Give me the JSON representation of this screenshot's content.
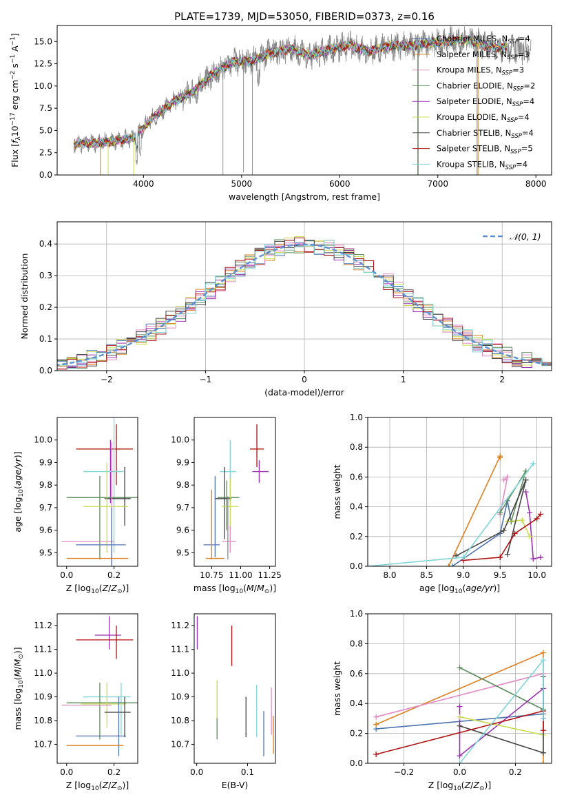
{
  "title": "PLATE=1739, MJD=53050, FIBERID=0373, z=0.16",
  "palette": [
    "#4c72b0",
    "#dd7f20",
    "#e289c4",
    "#5a8a5a",
    "#9b2fb0",
    "#c8dc4a",
    "#444444",
    "#b01010",
    "#7fd4d8",
    "#888888"
  ],
  "chart_data": [
    {
      "id": "spectrum",
      "type": "line",
      "xlabel": "wavelength [Angstrom, rest frame]",
      "ylabel": "Flux [f_λ 10^-17 erg cm^-2 s^-1 A^-1]",
      "xlim": [
        3120,
        8160
      ],
      "ylim": [
        0,
        16.8
      ],
      "xticks": [
        4000,
        5000,
        6000,
        7000,
        8000
      ],
      "yticks": [
        0.0,
        2.5,
        5.0,
        7.5,
        10.0,
        12.5,
        15.0
      ],
      "grid": false,
      "legend_position": "upper-right",
      "legend": [
        {
          "label": "Chabrier MILES, N",
          "sub": "SSP",
          "tail": "=4",
          "color": "#4c72b0"
        },
        {
          "label": "Salpeter MILES, N",
          "sub": "SSP",
          "tail": "=3",
          "color": "#dd7f20"
        },
        {
          "label": "Kroupa MILES, N",
          "sub": "SSP",
          "tail": "=3",
          "color": "#e289c4"
        },
        {
          "label": "Chabrier ELODIE, N",
          "sub": "SSP",
          "tail": "=2",
          "color": "#5a8a5a"
        },
        {
          "label": "Salpeter ELODIE, N",
          "sub": "SSP",
          "tail": "=4",
          "color": "#9b2fb0"
        },
        {
          "label": "Kroupa ELODIE, N",
          "sub": "SSP",
          "tail": "=4",
          "color": "#c8dc4a"
        },
        {
          "label": "Chabrier STELIB, N",
          "sub": "SSP",
          "tail": "=4",
          "color": "#444444"
        },
        {
          "label": "Salpeter STELIB, N",
          "sub": "SSP",
          "tail": "=5",
          "color": "#b01010"
        },
        {
          "label": "Kroupa STELIB, N",
          "sub": "SSP",
          "tail": "=4",
          "color": "#7fd4d8"
        }
      ],
      "continuum": {
        "x": [
          3290,
          3500,
          3700,
          3900,
          4100,
          4300,
          4500,
          4700,
          4900,
          5100,
          5300,
          5500,
          5700,
          5900,
          6100,
          6300,
          6500,
          6700,
          6900,
          7100,
          7300,
          7500,
          7700,
          7900
        ],
        "y": [
          3.5,
          3.6,
          3.8,
          4.2,
          6.5,
          8.2,
          9.3,
          11.3,
          12.7,
          12.8,
          13.7,
          14.2,
          13.4,
          14.1,
          14.6,
          13.9,
          14.5,
          14.5,
          14.8,
          15.0,
          15.2,
          14.5,
          14.2,
          13.9
        ]
      },
      "observed_spikes": [
        {
          "x": 4810,
          "y": 0.0
        },
        {
          "x": 5020,
          "y": 0.3
        },
        {
          "x": 5110,
          "y": 0.0
        },
        {
          "x": 6795,
          "y": 0.0
        },
        {
          "x": 7400,
          "y": 0.0
        }
      ]
    },
    {
      "id": "residuals",
      "type": "histogram",
      "xlabel": "(data-model)/error",
      "ylabel": "Normed distribution",
      "xlim": [
        -2.5,
        2.5
      ],
      "ylim": [
        0,
        0.47
      ],
      "xticks": [
        -2,
        -1,
        0,
        1,
        2
      ],
      "yticks": [
        0.0,
        0.1,
        0.2,
        0.3,
        0.4
      ],
      "grid": true,
      "bin_width": 0.1,
      "legend_position": "upper-right",
      "reference_label": "𝒩(0, 1)",
      "reference_color": "#5b8fd4"
    },
    {
      "id": "age-vs-Z",
      "type": "errorbar",
      "xlabel": "Z [log10(Z/Z⊙)]",
      "ylabel": "age [log10(age/yr)]",
      "xlim": [
        -0.04,
        0.3
      ],
      "ylim": [
        9.44,
        10.1
      ],
      "xticks": [
        0.0,
        0.2
      ],
      "yticks": [
        9.5,
        9.6,
        9.7,
        9.8,
        9.9,
        10.0
      ],
      "grid": false,
      "points": [
        {
          "x": 0.18,
          "xerr": 0.06,
          "y": 9.96,
          "yerr": 0.0,
          "color": "#b01010",
          "xlo": 0.04,
          "xhi": 0.28,
          "ylo": 9.96,
          "yhi": 9.96
        },
        {
          "x": 0.21,
          "y": 9.96,
          "color": "#b01010",
          "xlo": 0.21,
          "xhi": 0.21,
          "ylo": 9.8,
          "yhi": 10.07
        },
        {
          "x": 0.185,
          "y": 9.86,
          "color": "#9b2fb0",
          "xlo": 0.185,
          "xhi": 0.185,
          "ylo": 9.72,
          "yhi": 10.0
        },
        {
          "x": 0.15,
          "y": 9.86,
          "color": "#7fd4d8",
          "xlo": 0.07,
          "xhi": 0.24,
          "ylo": 9.86,
          "yhi": 9.86
        },
        {
          "x": 0.2,
          "y": 9.86,
          "color": "#7fd4d8",
          "xlo": 0.2,
          "xhi": 0.2,
          "ylo": 9.5,
          "yhi": 10.1
        },
        {
          "x": 0.2,
          "y": 9.745,
          "color": "#5a8a5a",
          "xlo": 0.0,
          "xhi": 0.3,
          "ylo": 9.745,
          "yhi": 9.745
        },
        {
          "x": 0.14,
          "y": 9.745,
          "color": "#5a8a5a",
          "xlo": 0.14,
          "xhi": 0.14,
          "ylo": 9.47,
          "yhi": 9.84
        },
        {
          "x": 0.21,
          "y": 9.74,
          "color": "#444444",
          "xlo": 0.16,
          "xhi": 0.27,
          "ylo": 9.74,
          "yhi": 9.74
        },
        {
          "x": 0.245,
          "y": 9.74,
          "color": "#444444",
          "xlo": 0.245,
          "xhi": 0.245,
          "ylo": 9.62,
          "yhi": 9.88
        },
        {
          "x": 0.15,
          "y": 9.705,
          "color": "#c8dc4a",
          "xlo": 0.07,
          "xhi": 0.26,
          "ylo": 9.705,
          "yhi": 9.705
        },
        {
          "x": 0.17,
          "y": 9.705,
          "color": "#c8dc4a",
          "xlo": 0.17,
          "xhi": 0.17,
          "ylo": 9.5,
          "yhi": 9.9
        },
        {
          "x": 0.12,
          "y": 9.55,
          "color": "#e289c4",
          "xlo": -0.02,
          "xhi": 0.2,
          "ylo": 9.55,
          "yhi": 9.55
        },
        {
          "x": 0.19,
          "y": 9.55,
          "color": "#e289c4",
          "xlo": 0.19,
          "xhi": 0.19,
          "ylo": 9.45,
          "yhi": 9.99
        },
        {
          "x": 0.15,
          "y": 9.535,
          "color": "#4c72b0",
          "xlo": 0.04,
          "xhi": 0.25,
          "ylo": 9.535,
          "yhi": 9.535
        },
        {
          "x": 0.19,
          "y": 9.535,
          "color": "#4c72b0",
          "xlo": 0.19,
          "xhi": 0.19,
          "ylo": 9.44,
          "yhi": 9.7
        },
        {
          "x": 0.15,
          "y": 9.475,
          "color": "#dd7f20",
          "xlo": 0.0,
          "xhi": 0.26,
          "ylo": 9.475,
          "yhi": 9.475
        }
      ]
    },
    {
      "id": "age-vs-mass",
      "type": "errorbar",
      "xlabel": "mass [log10(M/M⊙)]",
      "ylabel": "",
      "xlim": [
        10.6,
        11.3
      ],
      "ylim": [
        9.44,
        10.1
      ],
      "xticks": [
        10.75,
        11.0,
        11.25
      ],
      "yticks": [
        9.5,
        9.6,
        9.7,
        9.8,
        9.9,
        10.0
      ],
      "grid": false,
      "points": [
        {
          "color": "#b01010",
          "xlo": 11.08,
          "xhi": 11.2,
          "ylo": 9.96,
          "yhi": 9.96
        },
        {
          "color": "#b01010",
          "xlo": 11.14,
          "xhi": 11.14,
          "ylo": 9.88,
          "yhi": 10.07
        },
        {
          "color": "#9b2fb0",
          "xlo": 11.1,
          "xhi": 11.24,
          "ylo": 9.86,
          "yhi": 9.86
        },
        {
          "color": "#9b2fb0",
          "xlo": 11.16,
          "xhi": 11.16,
          "ylo": 9.81,
          "yhi": 9.91
        },
        {
          "color": "#7fd4d8",
          "xlo": 10.82,
          "xhi": 10.96,
          "ylo": 9.86,
          "yhi": 9.86
        },
        {
          "color": "#7fd4d8",
          "xlo": 10.91,
          "xhi": 10.91,
          "ylo": 9.72,
          "yhi": 10.0
        },
        {
          "color": "#5a8a5a",
          "xlo": 10.8,
          "xhi": 10.99,
          "ylo": 9.745,
          "yhi": 9.745
        },
        {
          "color": "#5a8a5a",
          "xlo": 10.88,
          "xhi": 10.88,
          "ylo": 9.6,
          "yhi": 9.82
        },
        {
          "color": "#444444",
          "xlo": 10.78,
          "xhi": 10.92,
          "ylo": 9.74,
          "yhi": 9.74
        },
        {
          "color": "#444444",
          "xlo": 10.86,
          "xhi": 10.86,
          "ylo": 9.56,
          "yhi": 9.88
        },
        {
          "color": "#c8dc4a",
          "xlo": 10.84,
          "xhi": 10.98,
          "ylo": 9.705,
          "yhi": 9.705
        },
        {
          "color": "#c8dc4a",
          "xlo": 10.91,
          "xhi": 10.91,
          "ylo": 9.6,
          "yhi": 9.83
        },
        {
          "color": "#e289c4",
          "xlo": 10.84,
          "xhi": 10.96,
          "ylo": 9.55,
          "yhi": 9.55
        },
        {
          "color": "#e289c4",
          "xlo": 10.91,
          "xhi": 10.91,
          "ylo": 9.5,
          "yhi": 9.62
        },
        {
          "color": "#4c72b0",
          "xlo": 10.68,
          "xhi": 10.82,
          "ylo": 9.535,
          "yhi": 9.535
        },
        {
          "color": "#4c72b0",
          "xlo": 10.78,
          "xhi": 10.78,
          "ylo": 9.48,
          "yhi": 9.84
        },
        {
          "color": "#dd7f20",
          "xlo": 10.7,
          "xhi": 10.86,
          "ylo": 9.475,
          "yhi": 9.475
        },
        {
          "color": "#dd7f20",
          "xlo": 10.75,
          "xhi": 10.75,
          "ylo": 9.47,
          "yhi": 9.78
        },
        {
          "color": "#888888",
          "xlo": 10.89,
          "xhi": 10.89,
          "ylo": 9.47,
          "yhi": 9.75
        }
      ]
    },
    {
      "id": "weight-vs-age",
      "type": "line",
      "xlabel": "age [log10(age/yr)]",
      "ylabel": "mass weight",
      "xlim": [
        7.7,
        10.2
      ],
      "ylim": [
        0,
        1.0
      ],
      "xticks": [
        8.0,
        8.5,
        9.0,
        9.5,
        10.0
      ],
      "yticks": [
        0.0,
        0.2,
        0.4,
        0.6,
        0.8,
        1.0
      ],
      "grid": true,
      "series": [
        {
          "color": "#4c72b0",
          "x": [
            8.85,
            9.5,
            9.6,
            9.65
          ],
          "y": [
            0.0,
            0.22,
            0.44,
            0.3
          ]
        },
        {
          "color": "#dd7f20",
          "x": [
            8.8,
            9.5,
            9.5
          ],
          "y": [
            0.0,
            0.74,
            0.73
          ]
        },
        {
          "color": "#e289c4",
          "x": [
            9.5,
            9.6,
            9.55
          ],
          "y": [
            0.35,
            0.6,
            0.58
          ]
        },
        {
          "color": "#5a8a5a",
          "x": [
            9.5,
            9.85,
            9.65
          ],
          "y": [
            0.36,
            0.64,
            0.3
          ]
        },
        {
          "color": "#9b2fb0",
          "x": [
            9.85,
            9.9,
            9.95,
            10.05
          ],
          "y": [
            0.5,
            0.36,
            0.05,
            0.06
          ]
        },
        {
          "color": "#c8dc4a",
          "x": [
            9.6,
            9.8,
            9.9
          ],
          "y": [
            0.3,
            0.31,
            0.2
          ]
        },
        {
          "color": "#444444",
          "x": [
            8.9,
            9.55,
            9.85,
            9.6
          ],
          "y": [
            0.07,
            0.24,
            0.58,
            0.08
          ]
        },
        {
          "color": "#b01010",
          "x": [
            9.0,
            9.5,
            9.7,
            10.0,
            10.05
          ],
          "y": [
            0.04,
            0.06,
            0.22,
            0.32,
            0.35
          ]
        },
        {
          "color": "#7fd4d8",
          "x": [
            7.7,
            9.0,
            9.95
          ],
          "y": [
            0.0,
            0.06,
            0.69
          ]
        }
      ]
    },
    {
      "id": "mass-vs-Z",
      "type": "errorbar",
      "xlabel": "Z [log10(Z/Z⊙)]",
      "ylabel": "mass [log10(M/M⊙)]",
      "xlim": [
        -0.04,
        0.3
      ],
      "ylim": [
        10.62,
        11.25
      ],
      "xticks": [
        0.0,
        0.2
      ],
      "yticks": [
        10.7,
        10.8,
        10.9,
        11.0,
        11.1,
        11.2
      ],
      "grid": false,
      "points": [
        {
          "color": "#9b2fb0",
          "xlo": 0.12,
          "xhi": 0.23,
          "ylo": 11.16,
          "yhi": 11.16
        },
        {
          "color": "#9b2fb0",
          "xlo": 0.18,
          "xhi": 0.18,
          "ylo": 11.1,
          "yhi": 11.24
        },
        {
          "color": "#b01010",
          "xlo": 0.04,
          "xhi": 0.28,
          "ylo": 11.14,
          "yhi": 11.14
        },
        {
          "color": "#b01010",
          "xlo": 0.21,
          "xhi": 0.21,
          "ylo": 11.06,
          "yhi": 11.2
        },
        {
          "color": "#7fd4d8",
          "xlo": 0.07,
          "xhi": 0.27,
          "ylo": 10.9,
          "yhi": 10.9
        },
        {
          "color": "#7fd4d8",
          "xlo": 0.23,
          "xhi": 0.23,
          "ylo": 10.74,
          "yhi": 10.96
        },
        {
          "color": "#5a8a5a",
          "xlo": 0.0,
          "xhi": 0.3,
          "ylo": 10.875,
          "yhi": 10.875
        },
        {
          "color": "#5a8a5a",
          "xlo": 0.14,
          "xhi": 0.14,
          "ylo": 10.72,
          "yhi": 10.96
        },
        {
          "color": "#c8dc4a",
          "xlo": 0.06,
          "xhi": 0.25,
          "ylo": 10.87,
          "yhi": 10.87
        },
        {
          "color": "#c8dc4a",
          "xlo": 0.17,
          "xhi": 0.17,
          "ylo": 10.77,
          "yhi": 10.96
        },
        {
          "color": "#e289c4",
          "xlo": -0.02,
          "xhi": 0.19,
          "ylo": 10.865,
          "yhi": 10.865
        },
        {
          "color": "#444444",
          "xlo": 0.16,
          "xhi": 0.27,
          "ylo": 10.835,
          "yhi": 10.835
        },
        {
          "color": "#444444",
          "xlo": 0.245,
          "xhi": 0.245,
          "ylo": 10.73,
          "yhi": 10.9
        },
        {
          "color": "#4c72b0",
          "xlo": 0.04,
          "xhi": 0.25,
          "ylo": 10.735,
          "yhi": 10.735
        },
        {
          "color": "#4c72b0",
          "xlo": 0.22,
          "xhi": 0.22,
          "ylo": 10.65,
          "yhi": 10.9
        },
        {
          "color": "#dd7f20",
          "xlo": 0.0,
          "xhi": 0.24,
          "ylo": 10.695,
          "yhi": 10.695
        }
      ]
    },
    {
      "id": "mass-vs-ebv",
      "type": "errorbar",
      "xlabel": "E(B-V)",
      "ylabel": "",
      "xlim": [
        -0.005,
        0.155
      ],
      "ylim": [
        10.62,
        11.25
      ],
      "xticks": [
        0.0,
        0.1
      ],
      "yticks": [
        10.7,
        10.8,
        10.9,
        11.0,
        11.1,
        11.2
      ],
      "grid": false,
      "points": [
        {
          "color": "#9b2fb0",
          "xlo": 0.001,
          "xhi": 0.001,
          "ylo": 11.1,
          "yhi": 11.24
        },
        {
          "color": "#b01010",
          "xlo": 0.069,
          "xhi": 0.069,
          "ylo": 11.03,
          "yhi": 11.2
        },
        {
          "color": "#c8dc4a",
          "xlo": 0.04,
          "xhi": 0.04,
          "ylo": 10.8,
          "yhi": 10.97
        },
        {
          "color": "#5a8a5a",
          "xlo": 0.04,
          "xhi": 0.04,
          "ylo": 10.72,
          "yhi": 10.81
        },
        {
          "color": "#444444",
          "xlo": 0.097,
          "xhi": 0.097,
          "ylo": 10.73,
          "yhi": 10.9
        },
        {
          "color": "#7fd4d8",
          "xlo": 0.118,
          "xhi": 0.118,
          "ylo": 10.73,
          "yhi": 10.95
        },
        {
          "color": "#4c72b0",
          "xlo": 0.132,
          "xhi": 0.132,
          "ylo": 10.65,
          "yhi": 10.84
        },
        {
          "color": "#e289c4",
          "xlo": 0.147,
          "xhi": 0.147,
          "ylo": 10.74,
          "yhi": 10.94
        },
        {
          "color": "#dd7f20",
          "xlo": 0.151,
          "xhi": 0.151,
          "ylo": 10.66,
          "yhi": 10.82
        }
      ]
    },
    {
      "id": "weight-vs-Z",
      "type": "line",
      "xlabel": "Z [log10(Z/Z⊙)]",
      "ylabel": "mass weight",
      "xlim": [
        -0.33,
        0.33
      ],
      "ylim": [
        0,
        1.0
      ],
      "xticks": [
        -0.2,
        0.0,
        0.2
      ],
      "yticks": [
        0.0,
        0.2,
        0.4,
        0.6,
        0.8,
        1.0
      ],
      "grid": true,
      "series": [
        {
          "color": "#4c72b0",
          "x": [
            -0.3,
            0.3
          ],
          "y": [
            0.23,
            0.33
          ]
        },
        {
          "color": "#dd7f20",
          "x": [
            -0.3,
            0.3,
            0.3
          ],
          "y": [
            0.26,
            0.74,
            0.0
          ]
        },
        {
          "color": "#e289c4",
          "x": [
            -0.3,
            0.3
          ],
          "y": [
            0.31,
            0.6
          ]
        },
        {
          "color": "#5a8a5a",
          "x": [
            0.0,
            0.3
          ],
          "y": [
            0.64,
            0.36
          ]
        },
        {
          "color": "#9b2fb0",
          "x": [
            0.0,
            0.0,
            0.3,
            0.3
          ],
          "y": [
            0.38,
            0.05,
            0.5,
            0.3
          ]
        },
        {
          "color": "#c8dc4a",
          "x": [
            0.0,
            0.3
          ],
          "y": [
            0.31,
            0.19
          ]
        },
        {
          "color": "#444444",
          "x": [
            0.0,
            0.3,
            0.3
          ],
          "y": [
            0.25,
            0.07,
            0.58
          ]
        },
        {
          "color": "#b01010",
          "x": [
            -0.3,
            0.3,
            0.3
          ],
          "y": [
            0.06,
            0.35,
            0.22
          ]
        },
        {
          "color": "#7fd4d8",
          "x": [
            0.0,
            0.3,
            0.3
          ],
          "y": [
            0.0,
            0.69,
            0.3
          ]
        }
      ]
    }
  ]
}
